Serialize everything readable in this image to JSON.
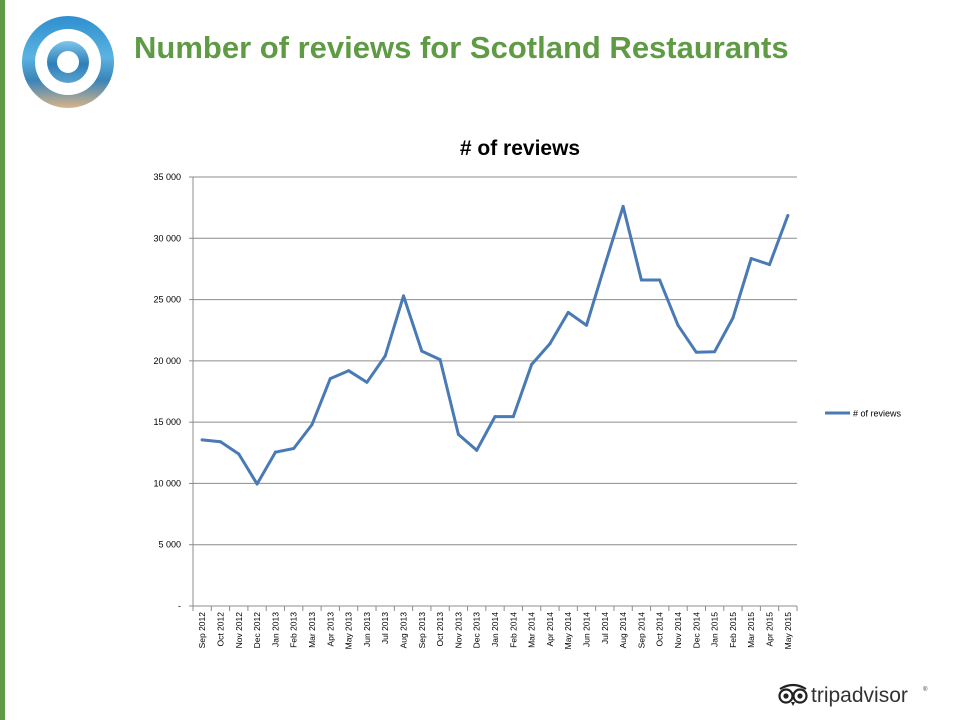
{
  "slide": {
    "title": "Number of reviews for Scotland Restaurants",
    "title_color": "#5f9b45",
    "accent_bar_color": "#5f9b45"
  },
  "branding": {
    "logo_left_icon": "circular-scenic-logo-icon",
    "logo_right_icon": "tripadvisor-owl-icon",
    "logo_right_text": "tripadvisor"
  },
  "chart_data": {
    "type": "line",
    "title": "# of reviews",
    "xlabel": "",
    "ylabel": "",
    "ylim": [
      0,
      35000
    ],
    "yticks": [
      0,
      5000,
      10000,
      15000,
      20000,
      25000,
      30000,
      35000
    ],
    "ytick_labels": [
      "-",
      "5 000",
      "10 000",
      "15 000",
      "20 000",
      "25 000",
      "30 000",
      "35 000"
    ],
    "grid": true,
    "legend_position": "right",
    "categories": [
      "Sep 2012",
      "Oct 2012",
      "Nov 2012",
      "Dec 2012",
      "Jan 2013",
      "Feb 2013",
      "Mar 2013",
      "Apr 2013",
      "May 2013",
      "Jun 2013",
      "Jul 2013",
      "Aug 2013",
      "Sep 2013",
      "Oct 2013",
      "Nov 2013",
      "Dec 2013",
      "Jan 2014",
      "Feb 2014",
      "Mar 2014",
      "Apr 2014",
      "May 2014",
      "Jun 2014",
      "Jul 2014",
      "Aug 2014",
      "Sep 2014",
      "Oct 2014",
      "Nov 2014",
      "Dec 2014",
      "Jan 2015",
      "Feb 2015",
      "Mar 2015",
      "Apr 2015",
      "May 2015"
    ],
    "series": [
      {
        "name": "# of reviews",
        "color": "#4a7ab5",
        "values": [
          13550,
          13400,
          12400,
          9950,
          12550,
          12850,
          14800,
          18550,
          19200,
          18250,
          20400,
          25300,
          20800,
          20100,
          14000,
          12700,
          15450,
          15450,
          19700,
          21400,
          23950,
          22900,
          27800,
          32600,
          26600,
          26600,
          22900,
          20700,
          20750,
          23500,
          28350,
          27850,
          31850
        ]
      }
    ]
  }
}
